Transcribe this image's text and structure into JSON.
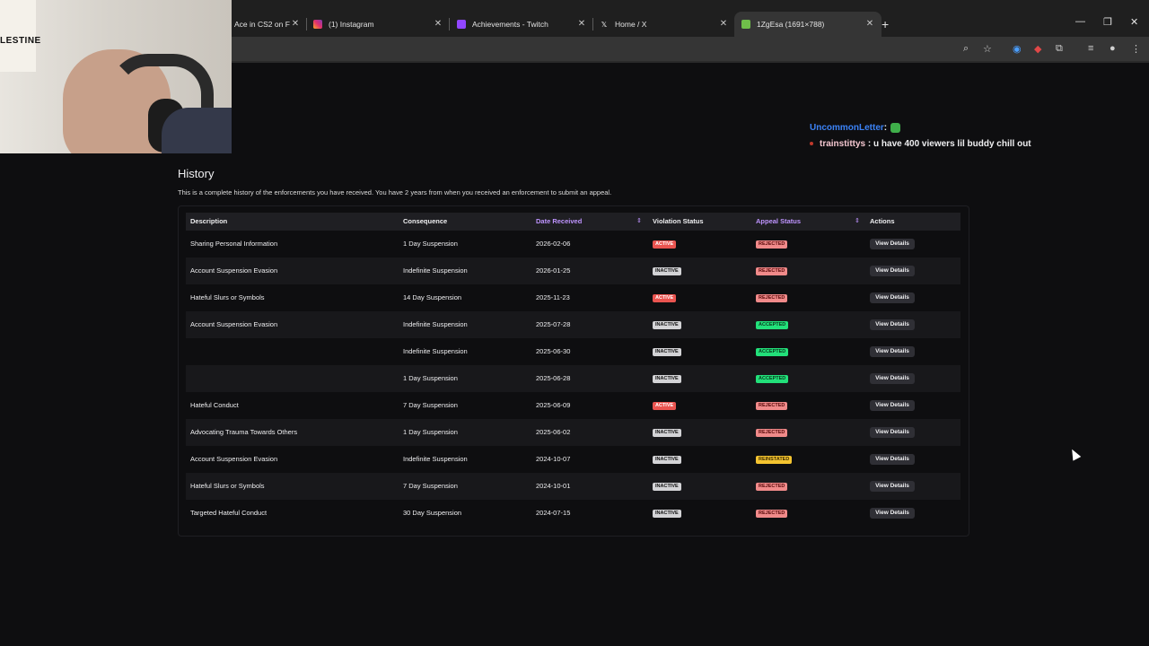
{
  "browser": {
    "tabs": [
      {
        "title": "Ace in CS2 on F",
        "icon": "page-icon",
        "active": false
      },
      {
        "title": "(1) Instagram",
        "icon": "instagram-icon",
        "active": false
      },
      {
        "title": "Achievements - Twitch",
        "icon": "twitch-icon",
        "active": false
      },
      {
        "title": "Home / X",
        "icon": "x-icon",
        "active": false
      },
      {
        "title": "1ZgEsa (1691×788)",
        "icon": "image-icon",
        "active": true
      }
    ],
    "new_tab": "+",
    "window": {
      "minimize": "—",
      "restore": "❐",
      "close": "✕"
    }
  },
  "webcam": {
    "flag_text": "LESTINE"
  },
  "chat": [
    {
      "user": "UncommonLetter",
      "sep": " :",
      "message": ""
    },
    {
      "user": "trainstittys",
      "sep": " : ",
      "message": "u have 400 viewers lil buddy chill out"
    }
  ],
  "history": {
    "title": "History",
    "subtitle": "This is a complete history of the enforcements you have received. You have 2 years from when you received an enforcement to submit an appeal.",
    "columns": {
      "description": "Description",
      "consequence": "Consequence",
      "date": "Date Received",
      "violation": "Violation Status",
      "appeal": "Appeal Status",
      "actions": "Actions"
    },
    "sort_glyph": "⇕",
    "button_label": "View Details",
    "rows": [
      {
        "description": "Sharing Personal Information",
        "consequence": "1 Day Suspension",
        "date": "2026-02-06",
        "violation": "ACTIVE",
        "appeal": "REJECTED"
      },
      {
        "description": "Account Suspension Evasion",
        "consequence": "Indefinite Suspension",
        "date": "2026-01-25",
        "violation": "INACTIVE",
        "appeal": "REJECTED"
      },
      {
        "description": "Hateful Slurs or Symbols",
        "consequence": "14 Day Suspension",
        "date": "2025-11-23",
        "violation": "ACTIVE",
        "appeal": "REJECTED"
      },
      {
        "description": "Account Suspension Evasion",
        "consequence": "Indefinite Suspension",
        "date": "2025-07-28",
        "violation": "INACTIVE",
        "appeal": "ACCEPTED"
      },
      {
        "description": "",
        "consequence": "Indefinite Suspension",
        "date": "2025-06-30",
        "violation": "INACTIVE",
        "appeal": "ACCEPTED"
      },
      {
        "description": "",
        "consequence": "1 Day Suspension",
        "date": "2025-06-28",
        "violation": "INACTIVE",
        "appeal": "ACCEPTED"
      },
      {
        "description": "Hateful Conduct",
        "consequence": "7 Day Suspension",
        "date": "2025-06-09",
        "violation": "ACTIVE",
        "appeal": "REJECTED"
      },
      {
        "description": "Advocating Trauma Towards Others",
        "consequence": "1 Day Suspension",
        "date": "2025-06-02",
        "violation": "INACTIVE",
        "appeal": "REJECTED"
      },
      {
        "description": "Account Suspension Evasion",
        "consequence": "Indefinite Suspension",
        "date": "2024-10-07",
        "violation": "INACTIVE",
        "appeal": "REINSTATED"
      },
      {
        "description": "Hateful Slurs or Symbols",
        "consequence": "7 Day Suspension",
        "date": "2024-10-01",
        "violation": "INACTIVE",
        "appeal": "REJECTED"
      },
      {
        "description": "Targeted Hateful Conduct",
        "consequence": "30 Day Suspension",
        "date": "2024-07-15",
        "violation": "INACTIVE",
        "appeal": "REJECTED"
      }
    ]
  },
  "colors": {
    "accent": "#bf94ff",
    "active": "#ea5450",
    "inactive": "#d3d3d6",
    "rejected": "#f08a8a",
    "accepted": "#22e07a",
    "reinstated": "#f4c430"
  }
}
